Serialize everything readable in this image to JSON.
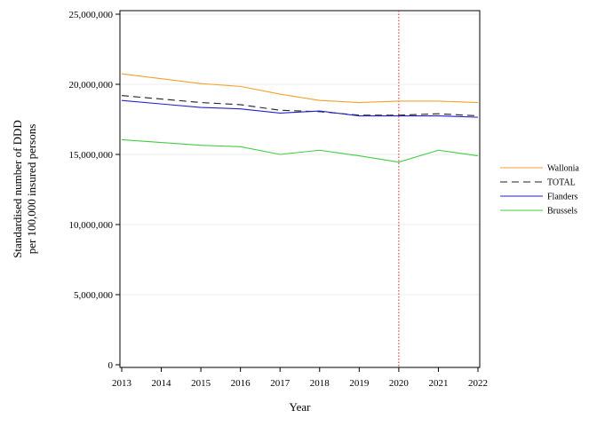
{
  "chart_data": {
    "type": "line",
    "xlabel": "Year",
    "ylabel_lines": [
      "Standardised number of DDD",
      "per 100,000 insured persons"
    ],
    "x": [
      2013,
      2014,
      2015,
      2016,
      2017,
      2018,
      2019,
      2020,
      2021,
      2022
    ],
    "x_tick_labels": [
      "2013",
      "2014",
      "2015",
      "2016",
      "2017",
      "2018",
      "2019",
      "2020",
      "2021",
      "2022"
    ],
    "ylim": [
      0,
      25000000
    ],
    "y_ticks": [
      0,
      5000000,
      10000000,
      15000000,
      20000000,
      25000000
    ],
    "y_tick_labels": [
      "0",
      "5,000,000",
      "10,000,000",
      "15,000,000",
      "20,000,000",
      "25,000,000"
    ],
    "grid": true,
    "reference_line": {
      "x": 2020,
      "color": "#d62728",
      "style": "dotted"
    },
    "legend_position": "right",
    "series": [
      {
        "name": "Wallonia",
        "color": "#f5a030",
        "dash": "",
        "values": [
          20750000,
          20400000,
          20050000,
          19850000,
          19300000,
          18850000,
          18700000,
          18800000,
          18800000,
          18700000
        ]
      },
      {
        "name": "TOTAL",
        "color": "#222222",
        "dash": "8,5",
        "values": [
          19200000,
          18950000,
          18700000,
          18550000,
          18150000,
          18050000,
          17800000,
          17800000,
          17900000,
          17750000
        ]
      },
      {
        "name": "Flanders",
        "color": "#2222cc",
        "dash": "",
        "values": [
          18850000,
          18600000,
          18350000,
          18250000,
          17950000,
          18100000,
          17750000,
          17750000,
          17750000,
          17650000
        ]
      },
      {
        "name": "Brussels",
        "color": "#44cc44",
        "dash": "",
        "values": [
          16050000,
          15850000,
          15650000,
          15550000,
          15000000,
          15300000,
          14900000,
          14450000,
          15300000,
          14900000
        ]
      }
    ]
  }
}
